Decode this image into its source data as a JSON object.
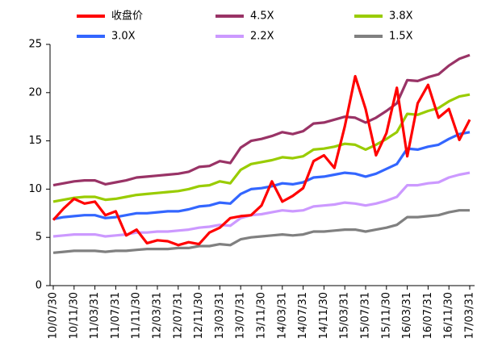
{
  "chart_data": {
    "type": "line",
    "categories": [
      "10/07/30",
      null,
      "10/11/30",
      null,
      "11/03/31",
      null,
      "11/07/31",
      null,
      "11/11/30",
      null,
      "12/03/31",
      null,
      "12/07/31",
      null,
      "12/11/30",
      null,
      "13/03/31",
      null,
      "13/07/31",
      null,
      "13/11/30",
      null,
      "14/03/31",
      null,
      "14/07/31",
      null,
      "14/11/30",
      null,
      "15/03/31",
      null,
      "15/07/31",
      null,
      "15/11/30",
      null,
      "16/03/31",
      null,
      "16/07/31",
      null,
      "16/11/30",
      null,
      "17/03/31"
    ],
    "series": [
      {
        "name": "收盘价",
        "color": "#ff0000",
        "values": [
          6.8,
          8.0,
          9.0,
          8.5,
          8.7,
          7.3,
          7.7,
          5.2,
          5.8,
          4.4,
          4.7,
          4.6,
          4.2,
          4.5,
          4.3,
          5.5,
          6.0,
          7.0,
          7.2,
          7.3,
          8.3,
          10.8,
          8.7,
          9.3,
          10.1,
          12.9,
          13.5,
          12.2,
          16.5,
          21.7,
          18.3,
          13.5,
          15.8,
          20.5,
          13.4,
          18.9,
          20.8,
          17.4,
          18.3,
          15.1,
          17.2
        ]
      },
      {
        "name": "4.5X",
        "color": "#993366",
        "values": [
          10.4,
          10.6,
          10.8,
          10.9,
          10.9,
          10.5,
          10.7,
          10.9,
          11.2,
          11.3,
          11.4,
          11.5,
          11.6,
          11.8,
          12.3,
          12.4,
          12.9,
          12.7,
          14.3,
          15.0,
          15.2,
          15.5,
          15.9,
          15.7,
          16.0,
          16.8,
          16.9,
          17.2,
          17.5,
          17.4,
          16.9,
          17.4,
          18.1,
          18.9,
          21.3,
          21.2,
          21.6,
          21.9,
          22.8,
          23.5,
          23.9
        ]
      },
      {
        "name": "3.8X",
        "color": "#99cc00",
        "values": [
          8.7,
          8.9,
          9.1,
          9.2,
          9.2,
          8.9,
          9.0,
          9.2,
          9.4,
          9.5,
          9.6,
          9.7,
          9.8,
          10.0,
          10.3,
          10.4,
          10.8,
          10.6,
          12.0,
          12.6,
          12.8,
          13.0,
          13.3,
          13.2,
          13.4,
          14.1,
          14.2,
          14.4,
          14.7,
          14.6,
          14.1,
          14.6,
          15.2,
          15.9,
          17.8,
          17.7,
          18.1,
          18.4,
          19.1,
          19.6,
          19.8
        ]
      },
      {
        "name": "3.0X",
        "color": "#3366ff",
        "values": [
          6.9,
          7.1,
          7.2,
          7.3,
          7.3,
          7.0,
          7.1,
          7.3,
          7.5,
          7.5,
          7.6,
          7.7,
          7.7,
          7.9,
          8.2,
          8.3,
          8.6,
          8.5,
          9.5,
          10.0,
          10.1,
          10.3,
          10.6,
          10.5,
          10.7,
          11.2,
          11.3,
          11.5,
          11.7,
          11.6,
          11.3,
          11.6,
          12.1,
          12.6,
          14.2,
          14.1,
          14.4,
          14.6,
          15.2,
          15.7,
          15.9
        ]
      },
      {
        "name": "2.2X",
        "color": "#cc99ff",
        "values": [
          5.1,
          5.2,
          5.3,
          5.3,
          5.3,
          5.1,
          5.2,
          5.3,
          5.5,
          5.5,
          5.6,
          5.6,
          5.7,
          5.8,
          6.0,
          6.1,
          6.3,
          6.2,
          7.0,
          7.3,
          7.4,
          7.6,
          7.8,
          7.7,
          7.8,
          8.2,
          8.3,
          8.4,
          8.6,
          8.5,
          8.3,
          8.5,
          8.8,
          9.2,
          10.4,
          10.4,
          10.6,
          10.7,
          11.2,
          11.5,
          11.7
        ]
      },
      {
        "name": "1.5X",
        "color": "#808080",
        "values": [
          3.4,
          3.5,
          3.6,
          3.6,
          3.6,
          3.5,
          3.6,
          3.6,
          3.7,
          3.8,
          3.8,
          3.8,
          3.9,
          3.9,
          4.1,
          4.1,
          4.3,
          4.2,
          4.8,
          5.0,
          5.1,
          5.2,
          5.3,
          5.2,
          5.3,
          5.6,
          5.6,
          5.7,
          5.8,
          5.8,
          5.6,
          5.8,
          6.0,
          6.3,
          7.1,
          7.1,
          7.2,
          7.3,
          7.6,
          7.8,
          7.8
        ]
      }
    ],
    "ylim": [
      0,
      25
    ],
    "yticks": [
      0,
      5,
      10,
      15,
      20,
      25
    ],
    "grid": false
  }
}
